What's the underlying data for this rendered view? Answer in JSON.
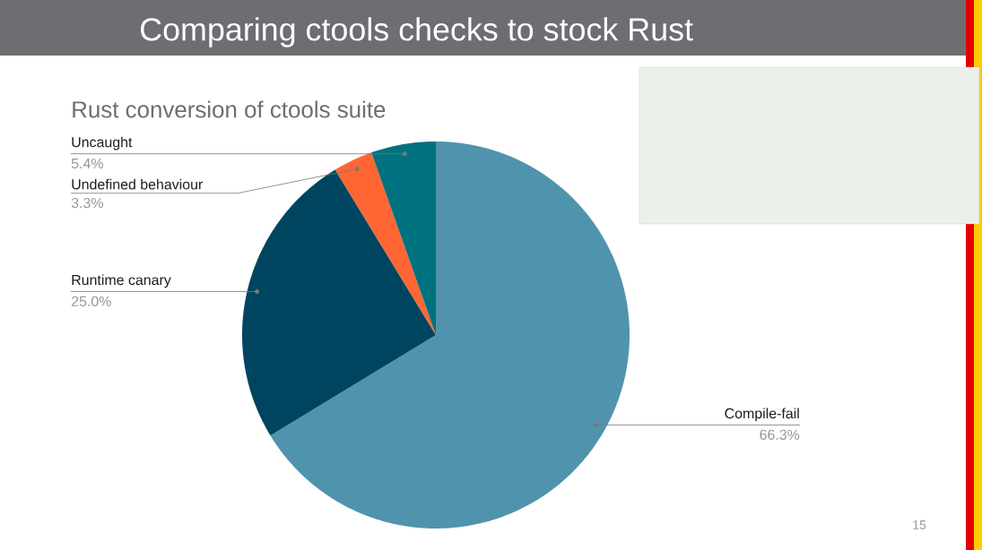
{
  "chart_data": {
    "type": "pie",
    "title": "Comparing ctools checks to stock Rust",
    "subtitle": "Rust conversion of ctools suite",
    "categories": [
      "Compile-fail",
      "Runtime canary",
      "Undefined behaviour",
      "Uncaught"
    ],
    "values": [
      66.3,
      25.0,
      3.3,
      5.4
    ],
    "value_labels": [
      "66.3%",
      "25.0%",
      "3.3%",
      "5.4%"
    ],
    "colors": [
      "#5093ad",
      "#00455f",
      "#ff6633",
      "#00717f"
    ],
    "annotations": [
      "15"
    ]
  }
}
